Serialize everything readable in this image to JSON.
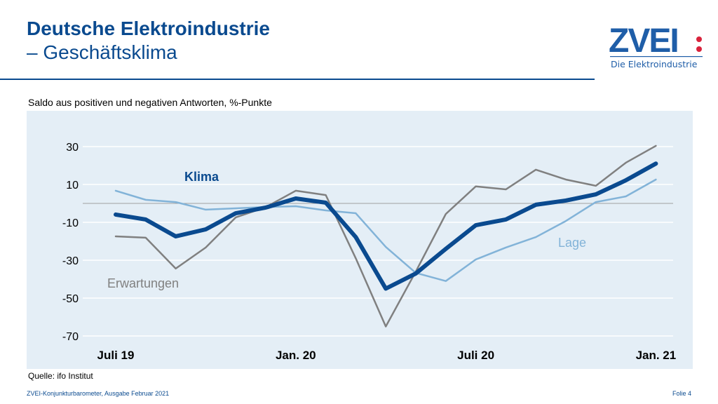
{
  "header": {
    "title_line1": "Deutsche Elektroindustrie",
    "title_line2": "– Geschäftsklima"
  },
  "logo": {
    "text": "ZVEI:",
    "tagline": "Die Elektroindustrie"
  },
  "colors": {
    "brand": "#0a4a8f",
    "klima": "#0a4a8f",
    "lage": "#82b3d8",
    "erwartungen": "#808080",
    "logo_dots": "#d9233c",
    "panel": "#e4eef6"
  },
  "footer": {
    "source": "Quelle: ifo Institut",
    "publication": "ZVEI-Konjunkturbarometer, Ausgabe Februar 2021",
    "slide": "Folie 4"
  },
  "chart_data": {
    "type": "line",
    "title": "",
    "subtitle": "Saldo aus positiven und negativen Antworten, %-Punkte",
    "xlabel": "",
    "ylabel": "",
    "ylim": [
      -70,
      30
    ],
    "yticks": [
      30,
      10,
      -10,
      -30,
      -50,
      -70
    ],
    "ytick_labels": [
      "30",
      "10",
      "-10",
      "-30",
      "-50",
      "-70"
    ],
    "grid": true,
    "zero_line": true,
    "x": [
      "2019-07",
      "2019-08",
      "2019-09",
      "2019-10",
      "2019-11",
      "2019-12",
      "2020-01",
      "2020-02",
      "2020-03",
      "2020-04",
      "2020-05",
      "2020-06",
      "2020-07",
      "2020-08",
      "2020-09",
      "2020-10",
      "2020-11",
      "2020-12",
      "2021-01"
    ],
    "xtick_labels": [
      {
        "x": "2019-07",
        "label": "Juli 19"
      },
      {
        "x": "2020-01",
        "label": "Jan. 20"
      },
      {
        "x": "2020-07",
        "label": "Juli 20"
      },
      {
        "x": "2021-01",
        "label": "Jan. 21"
      }
    ],
    "series": [
      {
        "name": "Erwartungen",
        "color": "#808080",
        "values": [
          -17.4,
          -18.1,
          -34.4,
          -23.3,
          -7.4,
          -2,
          6.7,
          4.4,
          -29,
          -65,
          -36,
          -5.6,
          9,
          7.4,
          17.8,
          12.6,
          9.3,
          21.5,
          30.4
        ]
      },
      {
        "name": "Lage",
        "color": "#82b3d8",
        "values": [
          6.7,
          1.9,
          0.7,
          -3.3,
          -2.6,
          -1.9,
          -1.5,
          -3.7,
          -5.2,
          -23,
          -36.7,
          -41,
          -29.6,
          -23.3,
          -17.8,
          -9.3,
          0.7,
          3.7,
          12.6
        ]
      },
      {
        "name": "Klima",
        "color": "#0a4a8f",
        "values": [
          -5.9,
          -8.5,
          -17.4,
          -13.7,
          -5.2,
          -2.2,
          2.6,
          0.4,
          -17.8,
          -45,
          -37,
          -24,
          -11.5,
          -8.5,
          -0.7,
          1.5,
          4.8,
          12.2,
          21
        ]
      }
    ]
  }
}
